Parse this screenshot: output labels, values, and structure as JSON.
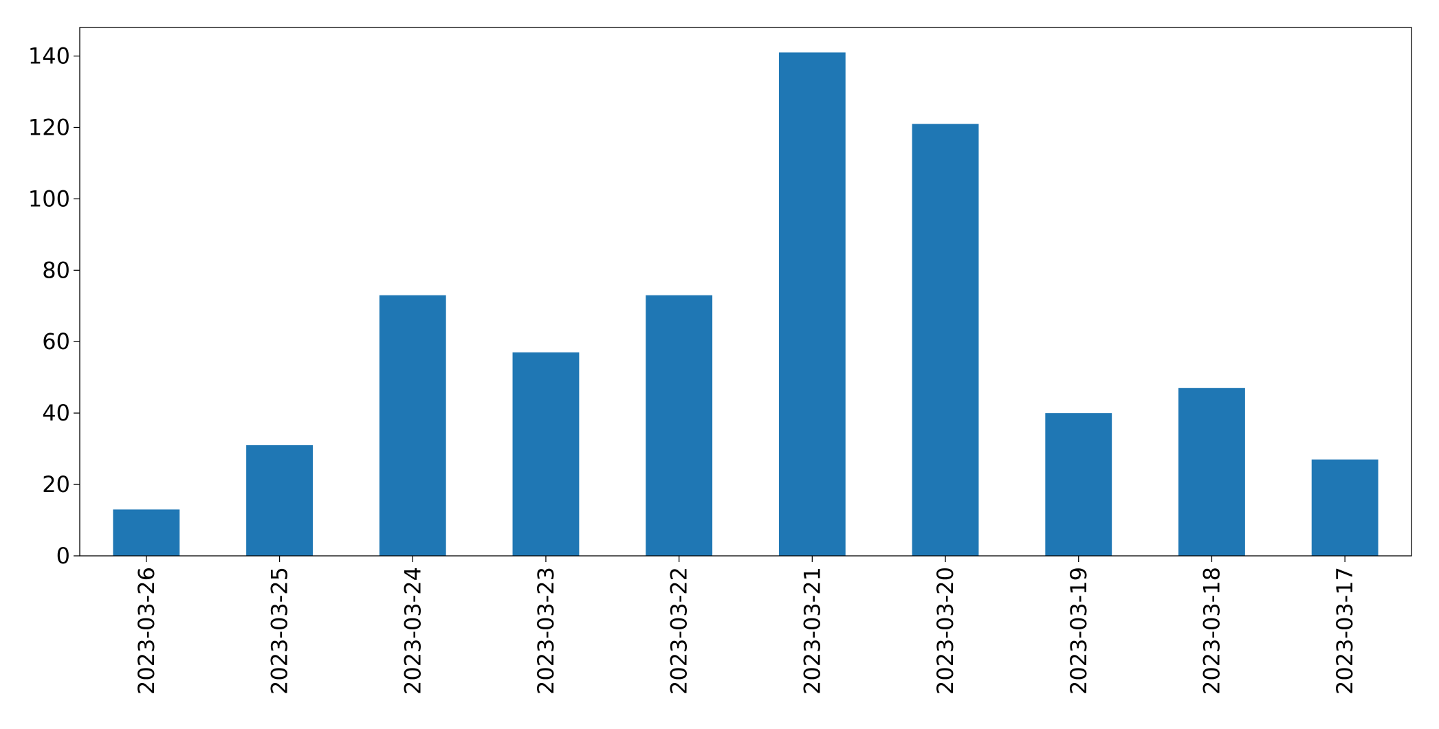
{
  "chart_data": {
    "type": "bar",
    "categories": [
      "2023-03-26",
      "2023-03-25",
      "2023-03-24",
      "2023-03-23",
      "2023-03-22",
      "2023-03-21",
      "2023-03-20",
      "2023-03-19",
      "2023-03-18",
      "2023-03-17"
    ],
    "values": [
      13,
      31,
      73,
      57,
      73,
      141,
      121,
      40,
      47,
      27
    ],
    "color": "#1f77b4",
    "ylim": [
      0,
      148
    ],
    "yticks": [
      0,
      20,
      40,
      60,
      80,
      100,
      120,
      140
    ],
    "grid": false
  }
}
